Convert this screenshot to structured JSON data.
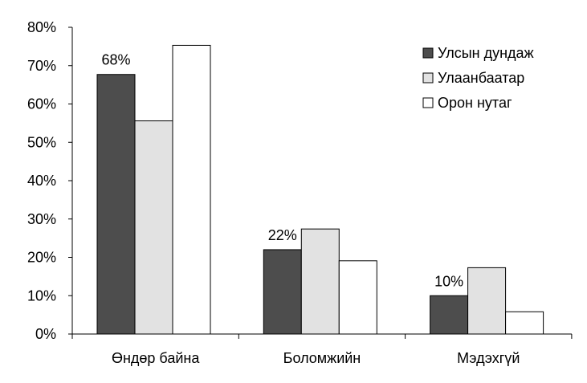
{
  "chart_data": {
    "type": "bar",
    "categories": [
      "Өндөр байна",
      "Боломжийн",
      "Мэдэхгүй"
    ],
    "series": [
      {
        "name": "Улсын дундаж",
        "color": "#4d4d4d",
        "values": [
          67.7,
          22.0,
          10.0
        ]
      },
      {
        "name": "Улаанбаатар",
        "color": "#e2e2e2",
        "values": [
          55.6,
          27.4,
          17.3
        ]
      },
      {
        "name": "Орон нутаг",
        "color": "#ffffff",
        "values": [
          75.3,
          19.1,
          5.8
        ]
      }
    ],
    "data_labels": [
      "68%",
      "22%",
      "10%"
    ],
    "y_ticks": [
      "0%",
      "10%",
      "20%",
      "30%",
      "40%",
      "50%",
      "60%",
      "70%",
      "80%"
    ],
    "ylim": [
      0,
      80
    ],
    "grid": false,
    "legend_position": "top-right"
  }
}
